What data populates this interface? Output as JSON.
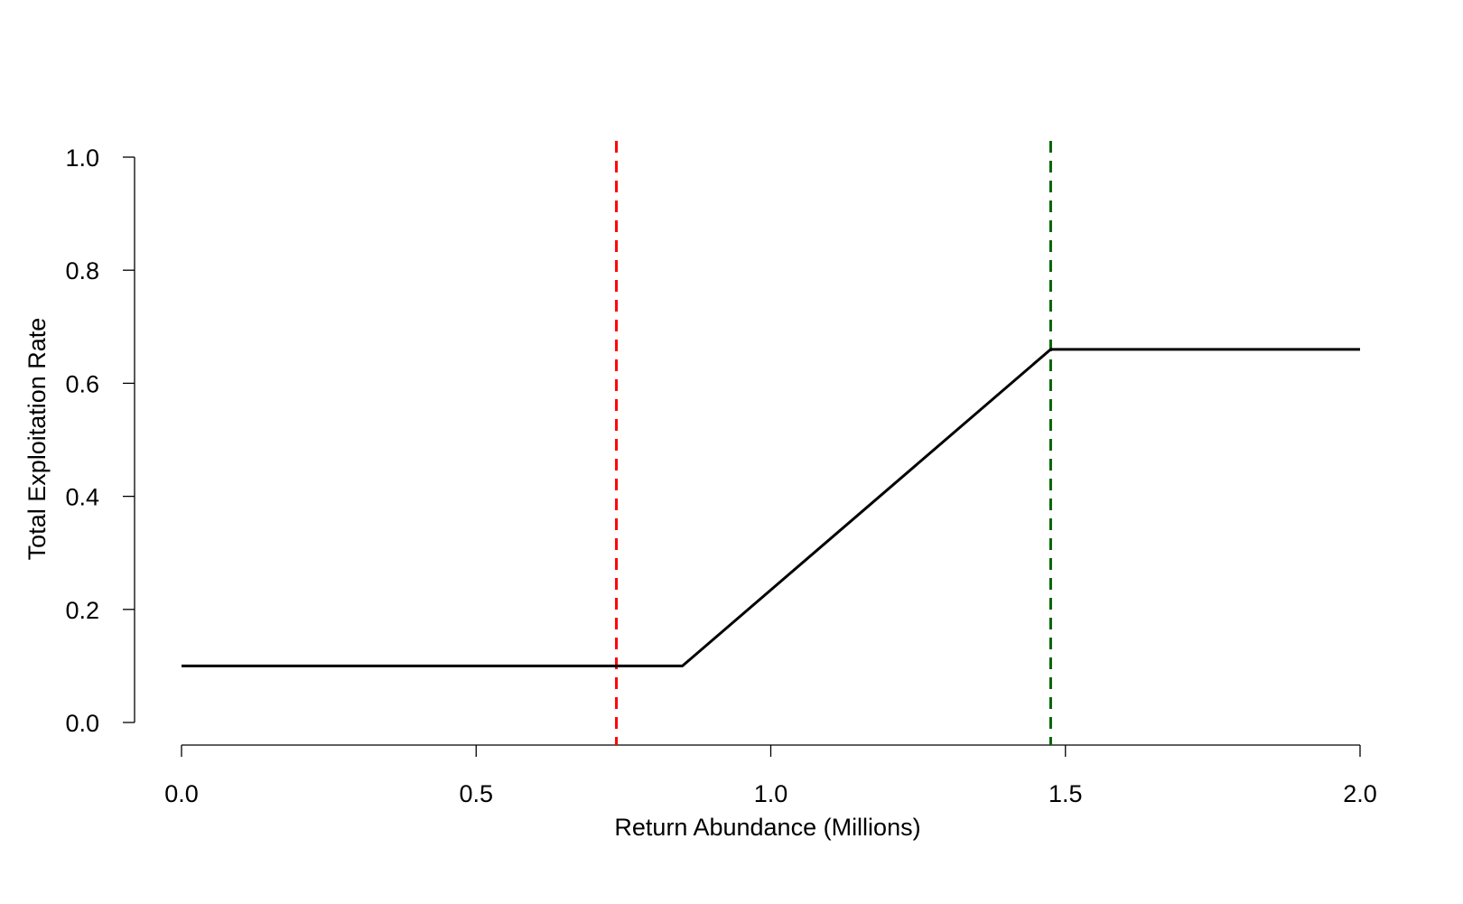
{
  "chart_data": {
    "type": "line",
    "title": "",
    "xlabel": "Return Abundance (Millions)",
    "ylabel": "Total Exploitation Rate",
    "xlim": [
      0,
      2
    ],
    "ylim": [
      0,
      1
    ],
    "x_ticks": [
      0,
      0.5,
      1,
      1.5,
      2
    ],
    "x_tick_labels": [
      "0.0",
      "0.5",
      "1.0",
      "1.5",
      "2.0"
    ],
    "y_ticks": [
      0,
      0.2,
      0.4,
      0.6,
      0.8,
      1
    ],
    "y_tick_labels": [
      "0.0",
      "0.2",
      "0.4",
      "0.6",
      "0.8",
      "1.0"
    ],
    "grid": false,
    "series": [
      {
        "x": [
          0,
          0.85,
          1.475,
          2.0
        ],
        "y": [
          0.1,
          0.1,
          0.66,
          0.66
        ],
        "color": "#000000"
      }
    ],
    "reference_lines": [
      {
        "orientation": "vertical",
        "x": 0.738,
        "color": "#ff0000",
        "style": "dashed"
      },
      {
        "orientation": "vertical",
        "x": 1.475,
        "color": "#006400",
        "style": "dashed"
      }
    ]
  }
}
